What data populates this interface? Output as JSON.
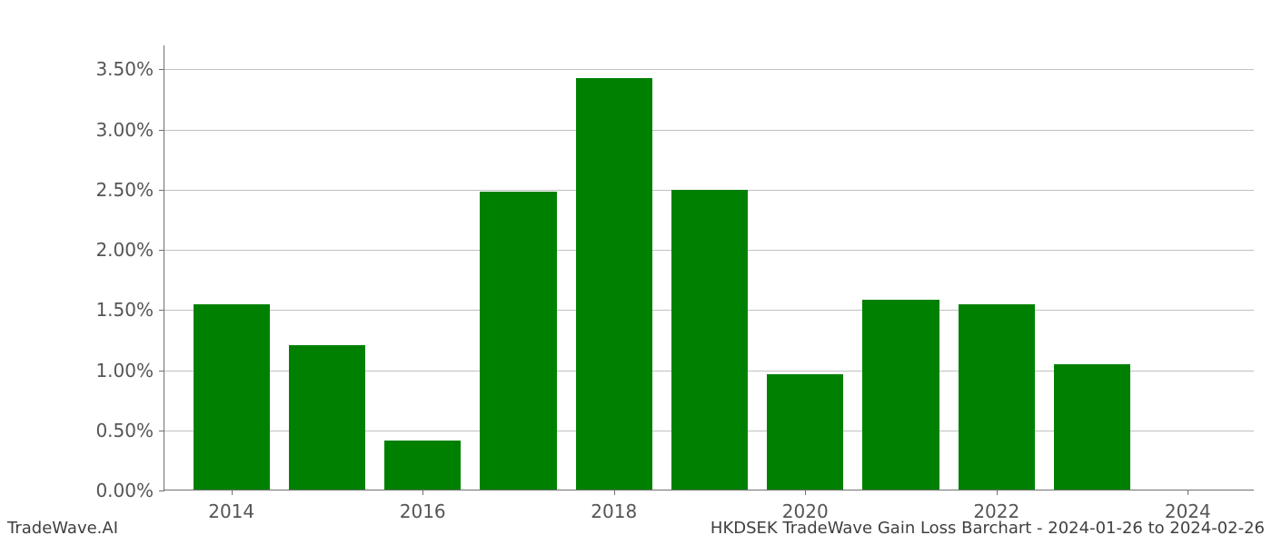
{
  "chart": {
    "type": "bar",
    "years": [
      2014,
      2015,
      2016,
      2017,
      2018,
      2019,
      2020,
      2021,
      2022,
      2023
    ],
    "values_pct": [
      1.54,
      1.2,
      0.41,
      2.48,
      3.42,
      2.49,
      0.96,
      1.58,
      1.54,
      1.04
    ],
    "bar_color": "#008000",
    "bar_width_years": 0.8,
    "background_color": "#ffffff",
    "grid_color": "#c0c0c0",
    "axis_color": "#707070",
    "tick_label_color": "#555555",
    "tick_fontsize": 20,
    "x_domain": [
      2013.3,
      2024.7
    ],
    "x_ticks": [
      2014,
      2016,
      2018,
      2020,
      2022,
      2024
    ],
    "y_domain": [
      0.0,
      3.7
    ],
    "y_ticks": [
      0.0,
      0.5,
      1.0,
      1.5,
      2.0,
      2.5,
      3.0,
      3.5
    ],
    "y_tick_labels": [
      "0.00%",
      "0.50%",
      "1.00%",
      "1.50%",
      "2.00%",
      "2.50%",
      "3.00%",
      "3.50%"
    ]
  },
  "footer": {
    "left": "TradeWave.AI",
    "right": "HKDSEK TradeWave Gain Loss Barchart - 2024-01-26 to 2024-02-26",
    "fontsize": 18,
    "color": "#404040"
  }
}
